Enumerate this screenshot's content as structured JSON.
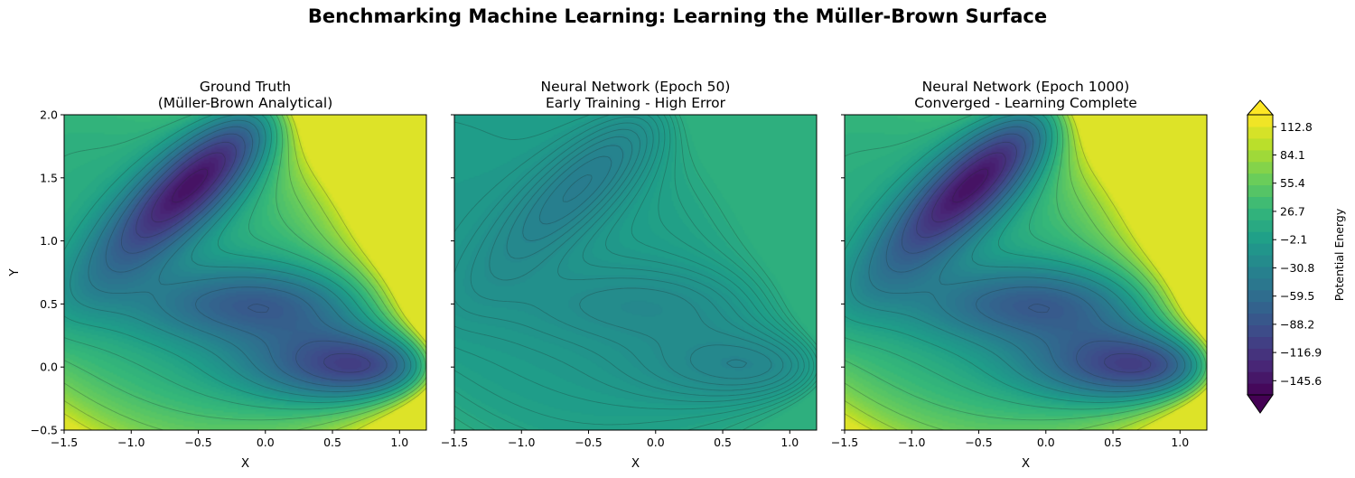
{
  "figure": {
    "title": "Benchmarking Machine Learning: Learning the Müller-Brown Surface"
  },
  "chart_data": [
    {
      "type": "heatmap",
      "title_line1": "Ground Truth",
      "title_line2": "(Müller-Brown Analytical)",
      "xlabel": "X",
      "ylabel": "Y",
      "xlim": [
        -1.5,
        1.2
      ],
      "ylim": [
        -0.5,
        2.0
      ],
      "xticks": [
        "−1.5",
        "−1.0",
        "−0.5",
        "0.0",
        "0.5",
        "1.0"
      ],
      "yticks": [
        "−0.5",
        "0.0",
        "0.5",
        "1.0",
        "1.5",
        "2.0"
      ],
      "surface": "muller-brown analytical",
      "minima": [
        {
          "x": -0.56,
          "y": 1.44
        },
        {
          "x": -0.05,
          "y": 0.47
        },
        {
          "x": 0.62,
          "y": 0.03
        }
      ]
    },
    {
      "type": "heatmap",
      "title_line1": "Neural Network (Epoch 50)",
      "title_line2": "Early Training - High Error",
      "xlabel": "X",
      "ylabel": "",
      "xlim": [
        -1.5,
        1.2
      ],
      "ylim": [
        -0.5,
        2.0
      ],
      "xticks": [
        "−1.5",
        "−1.0",
        "−0.5",
        "0.0",
        "0.5",
        "1.0"
      ],
      "yticks": [],
      "surface": "poor fit (compressed range)"
    },
    {
      "type": "heatmap",
      "title_line1": "Neural Network (Epoch 1000)",
      "title_line2": "Converged - Learning Complete",
      "xlabel": "X",
      "ylabel": "",
      "xlim": [
        -1.5,
        1.2
      ],
      "ylim": [
        -0.5,
        2.0
      ],
      "xticks": [
        "−1.5",
        "−1.0",
        "−0.5",
        "0.0",
        "0.5",
        "1.0"
      ],
      "yticks": [],
      "surface": "near-exact fit"
    }
  ],
  "colorbar": {
    "label": "Potential Energy",
    "colormap": "viridis",
    "range": [
      -160,
      125
    ],
    "ticks": [
      {
        "value": 112.8,
        "label": "112.8"
      },
      {
        "value": 84.1,
        "label": "84.1"
      },
      {
        "value": 55.4,
        "label": "55.4"
      },
      {
        "value": 26.7,
        "label": "26.7"
      },
      {
        "value": -2.1,
        "label": "−2.1"
      },
      {
        "value": -30.8,
        "label": "−30.8"
      },
      {
        "value": -59.5,
        "label": "−59.5"
      },
      {
        "value": -88.2,
        "label": "−88.2"
      },
      {
        "value": -116.9,
        "label": "−116.9"
      },
      {
        "value": -145.6,
        "label": "−145.6"
      }
    ]
  }
}
